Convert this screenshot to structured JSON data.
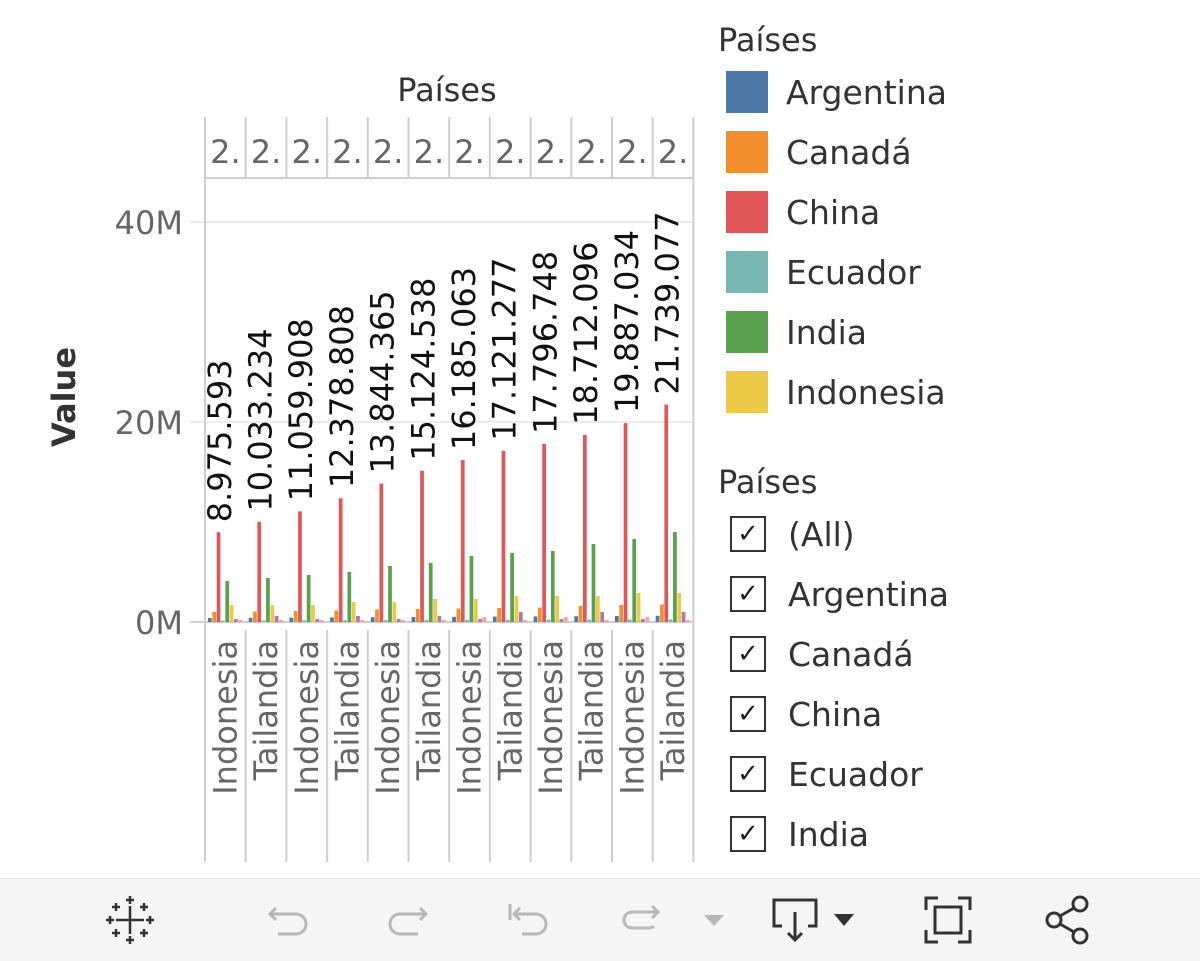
{
  "chart_data": {
    "type": "bar",
    "title": "Países",
    "ylabel": "Value",
    "ylim": [
      0,
      45000000
    ],
    "y_ticks": [
      {
        "value": 0,
        "label": "0M"
      },
      {
        "value": 20000000,
        "label": "20M"
      },
      {
        "value": 40000000,
        "label": "40M"
      }
    ],
    "header_labels": [
      "2.",
      "2.",
      "2.",
      "2.",
      "2.",
      "2.",
      "2.",
      "2.",
      "2.",
      "2.",
      "2.",
      "2."
    ],
    "categories": [
      "Indonesia",
      "Tailandia",
      "Indonesia",
      "Tailandia",
      "Indonesia",
      "Tailandia",
      "Indonesia",
      "Tailandia",
      "Indonesia",
      "Tailandia",
      "Indonesia",
      "Tailandia"
    ],
    "series": [
      {
        "name": "Argentina",
        "color": "#4e79a7",
        "values": [
          400000,
          420000,
          440000,
          460000,
          480000,
          500000,
          520000,
          540000,
          560000,
          580000,
          600000,
          620000
        ]
      },
      {
        "name": "Canadá",
        "color": "#f28e2b",
        "values": [
          1000000,
          1050000,
          1100000,
          1150000,
          1250000,
          1300000,
          1350000,
          1400000,
          1450000,
          1600000,
          1700000,
          1750000
        ]
      },
      {
        "name": "China",
        "color": "#e15759",
        "values": [
          8975593,
          10033234,
          11059908,
          12378808,
          13844365,
          15124538,
          16185063,
          17121277,
          17796748,
          18712096,
          19887034,
          21739077
        ]
      },
      {
        "name": "Ecuador",
        "color": "#76b7b2",
        "values": [
          150000,
          160000,
          170000,
          180000,
          190000,
          200000,
          210000,
          220000,
          230000,
          240000,
          250000,
          260000
        ]
      },
      {
        "name": "India",
        "color": "#59a14f",
        "values": [
          4100000,
          4400000,
          4700000,
          5000000,
          5600000,
          5900000,
          6600000,
          6900000,
          7100000,
          7800000,
          8300000,
          9000000
        ]
      },
      {
        "name": "Indonesia",
        "color": "#edc948",
        "values": [
          1700000,
          1700000,
          1700000,
          2000000,
          2000000,
          2300000,
          2300000,
          2600000,
          2600000,
          2600000,
          2900000,
          2900000
        ]
      },
      {
        "name": "",
        "color": "#b07aa1",
        "values": [
          300000,
          600000,
          300000,
          600000,
          300000,
          600000,
          300000,
          1000000,
          300000,
          1000000,
          300000,
          1000000
        ]
      },
      {
        "name": "",
        "color": "#ff9da7",
        "values": [
          200000,
          200000,
          200000,
          200000,
          200000,
          200000,
          500000,
          200000,
          500000,
          200000,
          500000,
          200000
        ]
      }
    ],
    "data_labels": [
      "8.975.593",
      "10.033.234",
      "11.059.908",
      "12.378.808",
      "13.844.365",
      "15.124.538",
      "16.185.063",
      "17.121.277",
      "17.796.748",
      "18.712.096",
      "19.887.034",
      "21.739.077"
    ],
    "data_label_series": "China",
    "grid": true,
    "legend_position": "right"
  },
  "legend": {
    "title": "Países",
    "items": [
      {
        "label": "Argentina",
        "color": "#4e79a7"
      },
      {
        "label": "Canadá",
        "color": "#f28e2b"
      },
      {
        "label": "China",
        "color": "#e15759"
      },
      {
        "label": "Ecuador",
        "color": "#76b7b2"
      },
      {
        "label": "India",
        "color": "#59a14f"
      },
      {
        "label": "Indonesia",
        "color": "#edc948"
      }
    ]
  },
  "filter": {
    "title": "Países",
    "checkmark": "✓",
    "items": [
      {
        "label": "(All)",
        "checked": true
      },
      {
        "label": "Argentina",
        "checked": true
      },
      {
        "label": "Canadá",
        "checked": true
      },
      {
        "label": "China",
        "checked": true
      },
      {
        "label": "Ecuador",
        "checked": true
      },
      {
        "label": "India",
        "checked": true
      }
    ]
  },
  "toolbar": {
    "buttons": [
      "tableau-logo-icon",
      "undo-icon",
      "redo-icon",
      "revert-icon",
      "refresh-icon",
      "pause-dropdown-icon",
      "download-icon",
      "fullscreen-icon",
      "share-icon"
    ]
  }
}
